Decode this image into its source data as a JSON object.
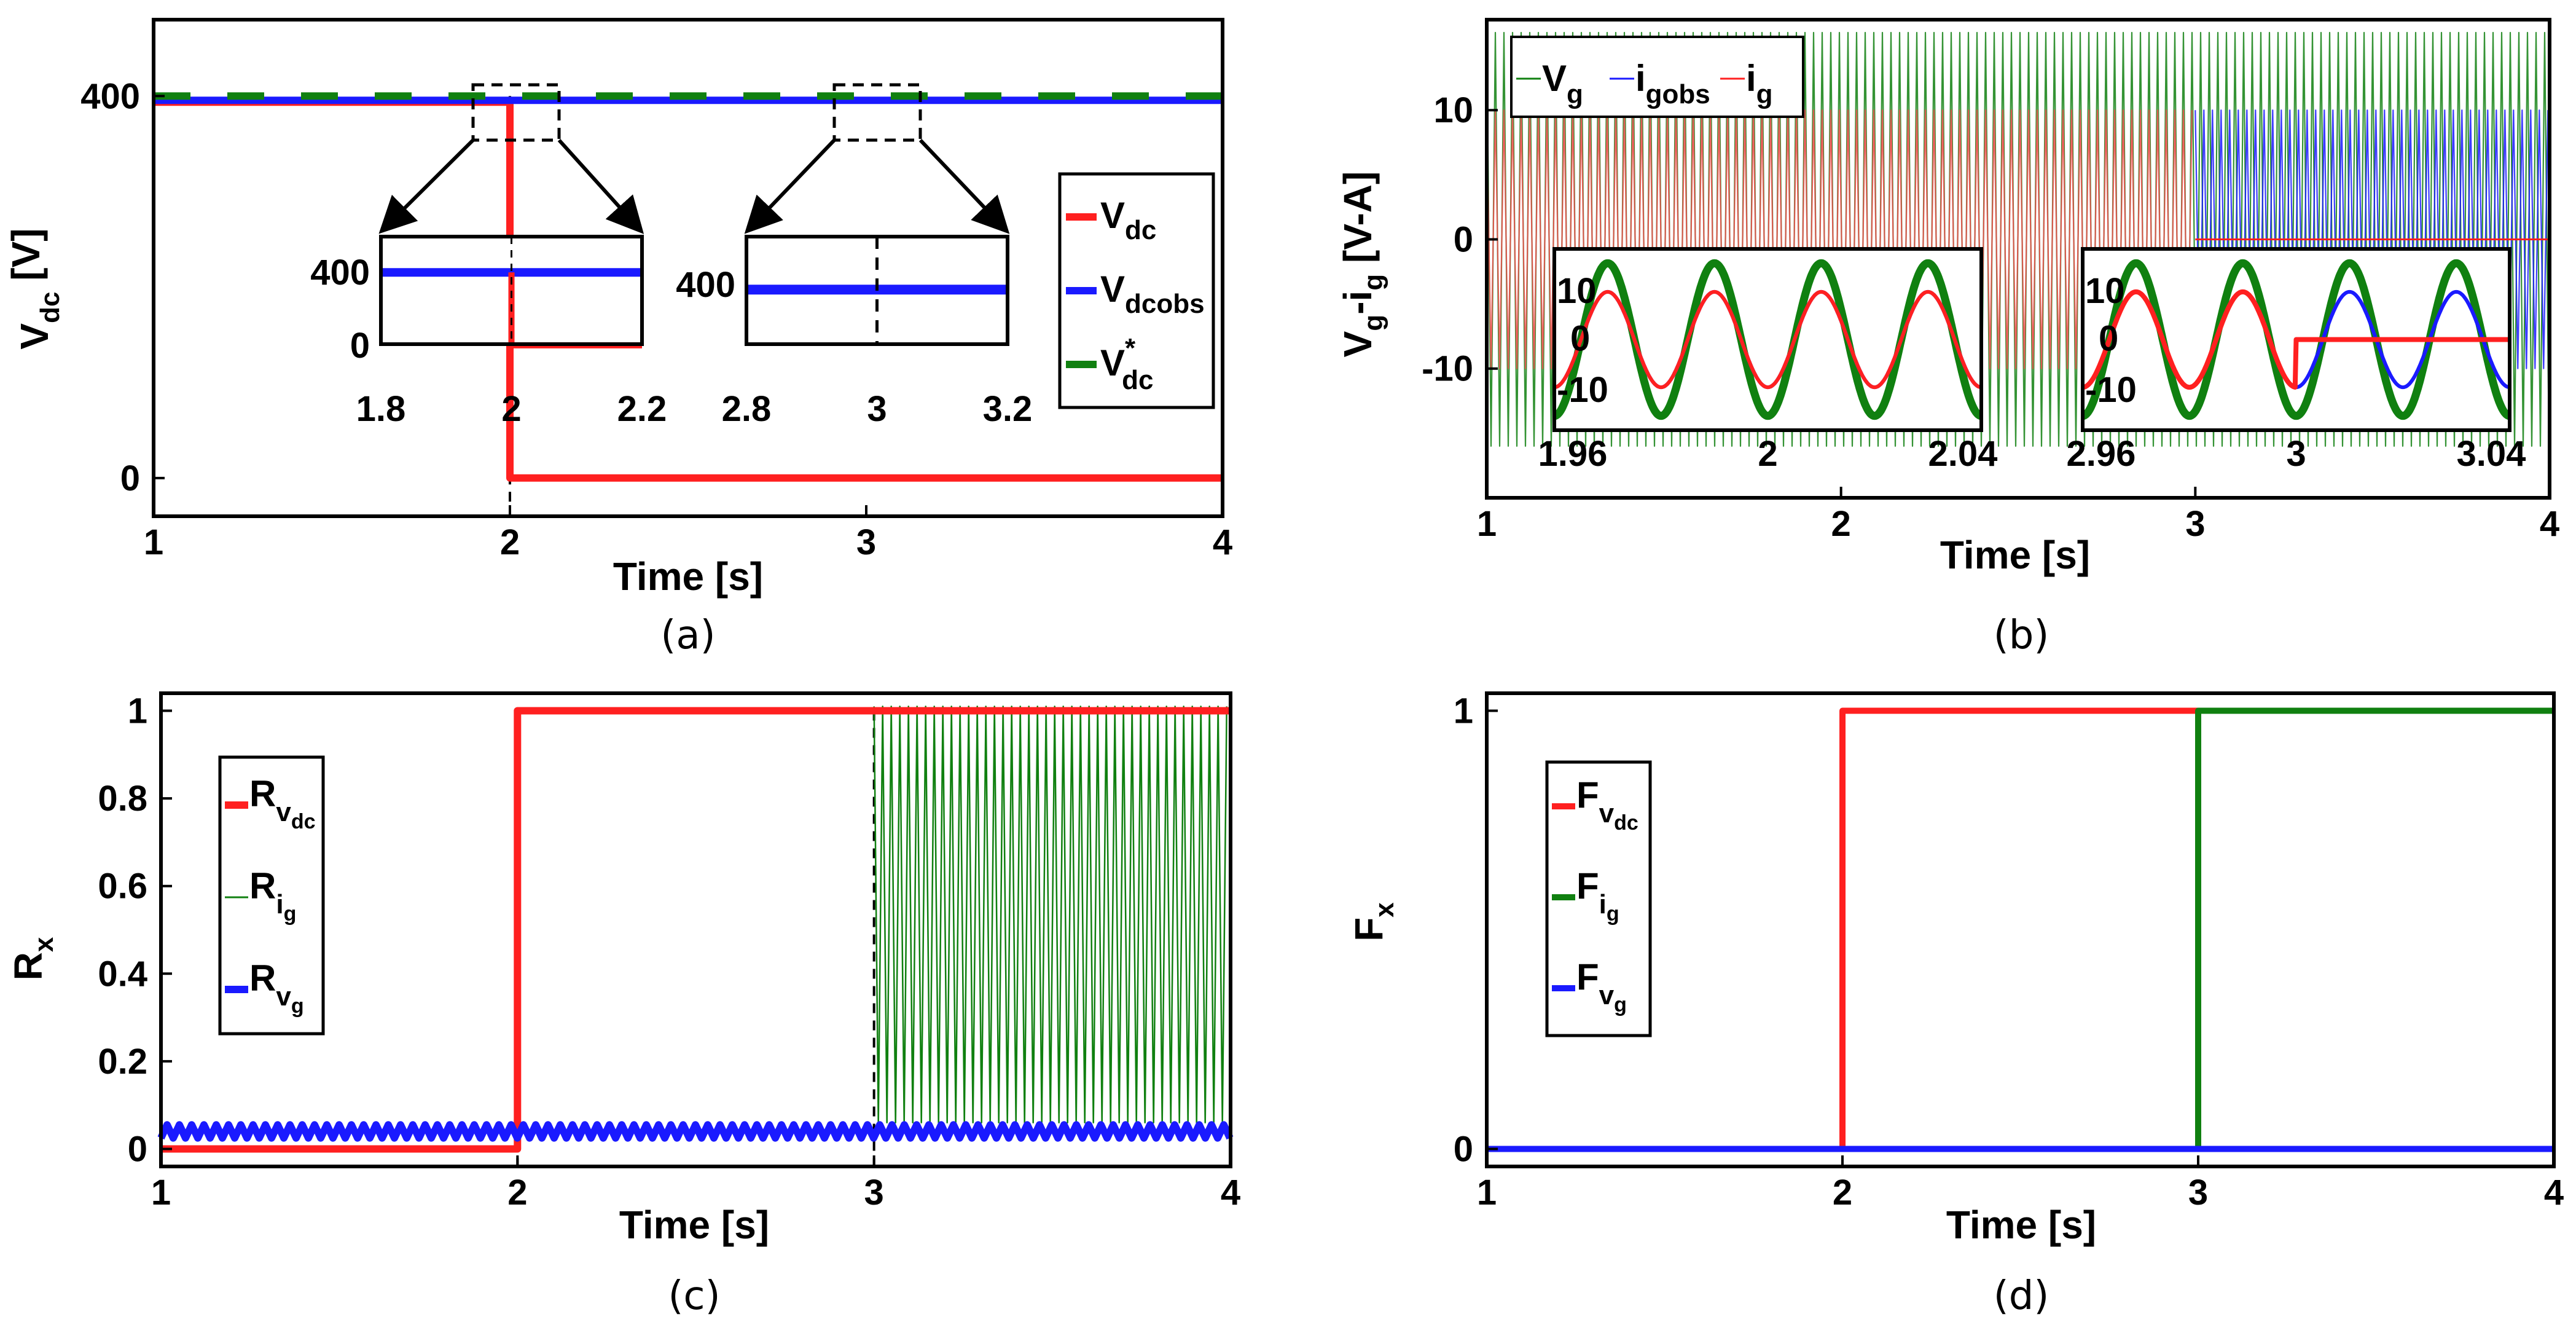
{
  "colors": {
    "red": "#ff2020",
    "blue": "#1a1aff",
    "green": "#108010",
    "black": "#000000"
  },
  "chart_data": [
    {
      "panel": "a",
      "type": "line",
      "caption": "(a)",
      "xlabel": "Time [s]",
      "ylabel": {
        "main": "V",
        "sub": "dc",
        "unit": " [V]"
      },
      "xlim": [
        1,
        4
      ],
      "ylim": [
        -40,
        480
      ],
      "xticks": [
        "1",
        "2",
        "3",
        "4"
      ],
      "yticks": [
        "0",
        "400"
      ],
      "series": [
        {
          "name": "V_dc",
          "x": [
            1,
            2,
            2,
            4
          ],
          "y": [
            400,
            400,
            0,
            0
          ]
        },
        {
          "name": "V_dcobs",
          "x": [
            1,
            4
          ],
          "y": [
            400,
            400
          ]
        },
        {
          "name": "V*_dc",
          "x": [
            1,
            4
          ],
          "y": [
            400,
            400
          ]
        }
      ],
      "legend": [
        {
          "main": "V",
          "sub": "dc",
          "sup": ""
        },
        {
          "main": "V",
          "sub": "dcobs",
          "sup": ""
        },
        {
          "main": "V",
          "sub": "dc",
          "sup": "*"
        }
      ],
      "insets": [
        {
          "xticks": [
            "1.8",
            "2",
            "2.2"
          ],
          "yticks": [
            "400",
            "0"
          ]
        },
        {
          "xticks": [
            "2.8",
            "3",
            "3.2"
          ],
          "yticks": [
            "400"
          ]
        }
      ]
    },
    {
      "panel": "b",
      "type": "line",
      "caption": "(b)",
      "xlabel": "Time [s]",
      "ylabel": {
        "main": "V",
        "sub": "g",
        "mid": "-i",
        "sub2": "g",
        "unit": " [V-A]"
      },
      "xlim": [
        1,
        4
      ],
      "ylim": [
        -20,
        17
      ],
      "xticks": [
        "1",
        "2",
        "3",
        "4"
      ],
      "yticks": [
        "10",
        "0",
        "-10"
      ],
      "series": [
        {
          "name": "V_g",
          "amplitude": 16,
          "cycles_per_s": 50
        },
        {
          "name": "i_gobs",
          "amplitude": 10,
          "cycles_per_s": 50
        },
        {
          "name": "i_g",
          "amplitude_before_3s": 10,
          "amplitude_after_3s": 0
        }
      ],
      "legend": [
        {
          "main": "V",
          "sub": "g"
        },
        {
          "main": "i",
          "sub": "gobs"
        },
        {
          "main": "i",
          "sub": "g"
        }
      ],
      "insets": [
        {
          "xticks": [
            "1.96",
            "2",
            "2.04"
          ],
          "yticks": [
            "10",
            "0",
            "-10"
          ]
        },
        {
          "xticks": [
            "2.96",
            "3",
            "3.04"
          ],
          "yticks": [
            "10",
            "0",
            "-10"
          ]
        }
      ]
    },
    {
      "panel": "c",
      "type": "line",
      "caption": "(c)",
      "xlabel": "Time [s]",
      "ylabel": {
        "main": "R",
        "sub": "x"
      },
      "xlim": [
        1,
        4
      ],
      "ylim": [
        -0.04,
        1.04
      ],
      "xticks": [
        "1",
        "2",
        "3",
        "4"
      ],
      "yticks": [
        "0",
        "0.2",
        "0.4",
        "0.6",
        "0.8",
        "1"
      ],
      "series": [
        {
          "name": "R_vdc",
          "x": [
            1,
            2,
            2,
            4
          ],
          "y": [
            0,
            0,
            1,
            1
          ]
        },
        {
          "name": "R_ig",
          "note": "oscillates 0 to 1 after t=3",
          "x": [
            1,
            3,
            3,
            4
          ],
          "y": [
            0,
            0,
            1,
            1
          ]
        },
        {
          "name": "R_vg",
          "mean": 0.04,
          "ripple": 0.015
        }
      ],
      "legend": [
        {
          "main": "R",
          "sub": "v",
          "subsub": "dc"
        },
        {
          "main": "R",
          "sub": "i",
          "subsub": "g"
        },
        {
          "main": "R",
          "sub": "v",
          "subsub": "g"
        }
      ]
    },
    {
      "panel": "d",
      "type": "line",
      "caption": "(d)",
      "xlabel": "Time [s]",
      "ylabel": {
        "main": "F",
        "sub": "x"
      },
      "xlim": [
        1,
        4
      ],
      "ylim": [
        -0.04,
        1.04
      ],
      "xticks": [
        "1",
        "2",
        "3",
        "4"
      ],
      "yticks": [
        "0",
        "1"
      ],
      "series": [
        {
          "name": "F_vdc",
          "x": [
            1,
            2,
            2,
            3
          ],
          "y": [
            0,
            0,
            1,
            1
          ]
        },
        {
          "name": "F_ig",
          "x": [
            3,
            3,
            4
          ],
          "y": [
            0,
            1,
            1
          ]
        },
        {
          "name": "F_vg",
          "x": [
            1,
            4
          ],
          "y": [
            0,
            0
          ]
        }
      ],
      "legend": [
        {
          "main": "F",
          "sub": "v",
          "subsub": "dc"
        },
        {
          "main": "F",
          "sub": "i",
          "subsub": "g"
        },
        {
          "main": "F",
          "sub": "v",
          "subsub": "g"
        }
      ]
    }
  ]
}
